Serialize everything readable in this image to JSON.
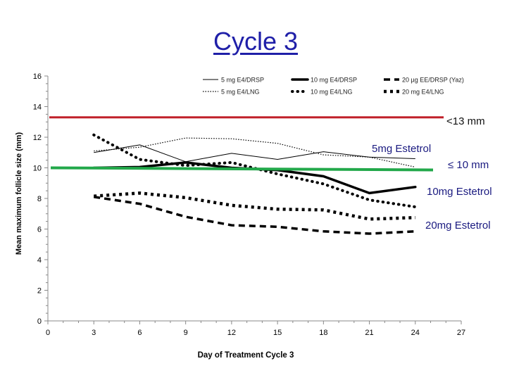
{
  "slide": {
    "title": "Cycle 3"
  },
  "annotations": {
    "threshold_13": "<13 mm",
    "threshold_10": "≤ 10 mm",
    "label_5mg": "5mg Estetrol",
    "label_10mg": "10mg Estetrol",
    "label_20mg": "20mg Estetrol"
  },
  "chart_data": {
    "type": "line",
    "title": "",
    "xlabel": "Day of Treatment Cycle 3",
    "ylabel": "Mean maximum follicle size (mm)",
    "xlim": [
      0,
      27
    ],
    "ylim": [
      0,
      16
    ],
    "xticks": [
      0,
      3,
      6,
      9,
      12,
      15,
      18,
      21,
      24,
      27
    ],
    "yticks": [
      0,
      2,
      4,
      6,
      8,
      10,
      12,
      14,
      16
    ],
    "grid": false,
    "legend_position": "top",
    "series": [
      {
        "name": "5 mg E4/DRSP",
        "style": "thin-solid",
        "color": "#000000",
        "x": [
          3,
          6,
          9,
          12,
          15,
          18,
          21,
          24
        ],
        "y": [
          11.0,
          11.5,
          10.4,
          10.95,
          10.55,
          11.05,
          10.7,
          10.6
        ]
      },
      {
        "name": "10 mg E4/DRSP",
        "style": "thick-solid",
        "color": "#000000",
        "x": [
          3,
          6,
          9,
          12,
          15,
          18,
          21,
          24
        ],
        "y": [
          10.0,
          10.05,
          10.35,
          10.0,
          9.85,
          9.45,
          8.35,
          8.75
        ]
      },
      {
        "name": "20 µg EE/DRSP (Yaz)",
        "style": "thick-dash",
        "color": "#000000",
        "x": [
          3,
          6,
          9,
          12,
          15,
          18,
          21,
          24
        ],
        "y": [
          8.1,
          7.65,
          6.8,
          6.25,
          6.15,
          5.85,
          5.7,
          5.85
        ]
      },
      {
        "name": "5 mg E4/LNG",
        "style": "thin-dot",
        "color": "#000000",
        "x": [
          3,
          6,
          9,
          12,
          15,
          18,
          21,
          24
        ],
        "y": [
          11.1,
          11.35,
          11.95,
          11.9,
          11.6,
          10.85,
          10.7,
          10.05
        ]
      },
      {
        "name": "10 mg E4/LNG",
        "style": "thick-dot",
        "color": "#000000",
        "x": [
          3,
          6,
          9,
          12,
          15,
          18,
          21,
          24
        ],
        "y": [
          12.15,
          10.55,
          10.15,
          10.35,
          9.6,
          8.95,
          7.9,
          7.45
        ]
      },
      {
        "name": "20 mg E4/LNG",
        "style": "square-dot",
        "color": "#000000",
        "x": [
          3,
          6,
          9,
          12,
          15,
          18,
          21,
          24
        ],
        "y": [
          8.15,
          8.35,
          8.05,
          7.55,
          7.3,
          7.25,
          6.65,
          6.75
        ]
      }
    ],
    "reference_lines": [
      {
        "label": "<13 mm",
        "y": 13.3,
        "color": "#c0202a"
      },
      {
        "label": "≤ 10 mm",
        "y": 10.0,
        "color": "#22a84a"
      }
    ]
  }
}
